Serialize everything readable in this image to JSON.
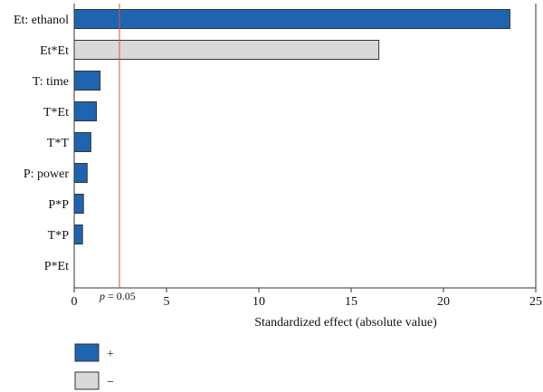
{
  "chart_data": {
    "type": "bar",
    "orientation": "horizontal",
    "categories": [
      "Et: ethanol",
      "Et*Et",
      "T: time",
      "T*Et",
      "T*T",
      "P: power",
      "P*P",
      "T*P",
      "P*Et"
    ],
    "values": [
      23.6,
      16.5,
      1.4,
      1.2,
      0.9,
      0.7,
      0.5,
      0.45,
      0.0
    ],
    "signs": [
      "+",
      "-",
      "+",
      "+",
      "+",
      "+",
      "+",
      "+",
      "+"
    ],
    "xlabel": "Standardized effect (absolute value)",
    "xlim": [
      0,
      25
    ],
    "xticks": [
      0,
      5,
      10,
      15,
      20,
      25
    ],
    "reference_line": {
      "value": 2.45,
      "label_italic": "p",
      "label_rest": " = 0.05",
      "color": "#d9534f"
    },
    "colors": {
      "positive": "#1f64b0",
      "negative": "#d9d9d9",
      "edge": "#333333"
    },
    "legend": [
      {
        "symbol": "+",
        "color": "#1f64b0"
      },
      {
        "symbol": "−",
        "color": "#d9d9d9"
      }
    ],
    "legend_placement": "bottom-left"
  }
}
